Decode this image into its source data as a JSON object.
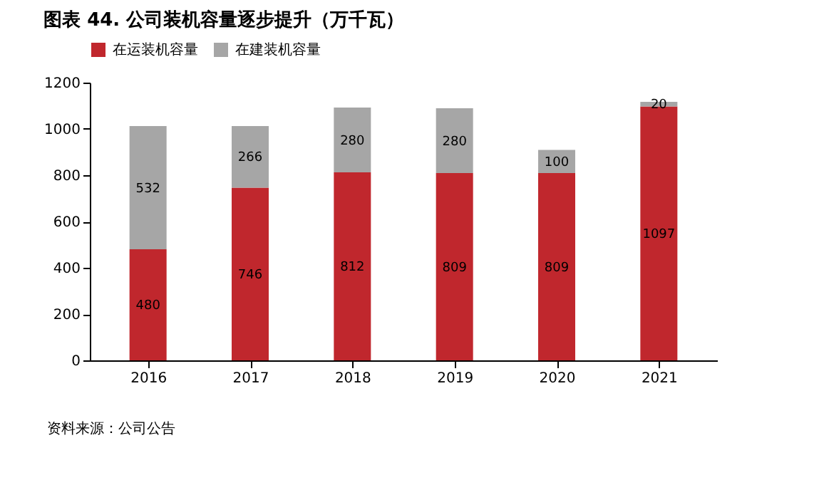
{
  "chart_data": {
    "type": "bar",
    "title": "图表 44. 公司装机容量逐步提升（万千瓦）",
    "categories": [
      "2016",
      "2017",
      "2018",
      "2019",
      "2020",
      "2021"
    ],
    "stacked": true,
    "series": [
      {
        "name": "在运装机容量",
        "color": "#c0272d",
        "values": [
          480,
          746,
          812,
          809,
          809,
          1097
        ]
      },
      {
        "name": "在建装机容量",
        "color": "#a6a6a6",
        "values": [
          532,
          266,
          280,
          280,
          100,
          20
        ]
      }
    ],
    "ylim": [
      0,
      1200
    ],
    "yticks": [
      0,
      200,
      400,
      600,
      800,
      1000,
      1200
    ],
    "data_labels": true,
    "grid": false,
    "legend": "top",
    "annotations": [
      "资料来源：公司公告"
    ]
  }
}
